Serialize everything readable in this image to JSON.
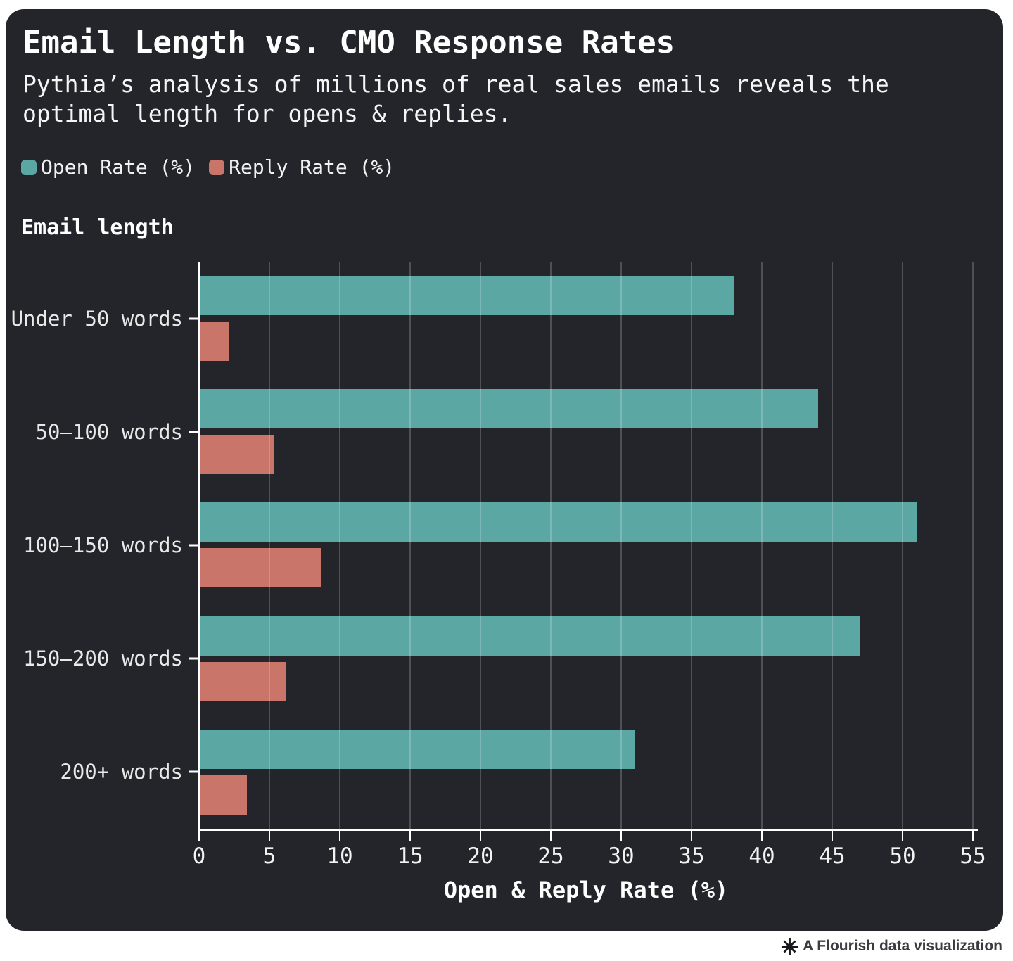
{
  "header": {
    "title": "Email Length vs. CMO Response Rates",
    "subtitle": "Pythia’s analysis of millions of real sales emails reveals the optimal length for opens & replies."
  },
  "legend": {
    "items": [
      {
        "label": "Open Rate (%)",
        "color": "#5AA7A4"
      },
      {
        "label": "Reply Rate (%)",
        "color": "#C97569"
      }
    ]
  },
  "chart_data": {
    "type": "bar",
    "orientation": "horizontal",
    "title": "Email Length vs. CMO Response Rates",
    "subtitle": "Pythia’s analysis of millions of real sales emails reveals the optimal length for opens & replies.",
    "y_axis_title": "Email length",
    "xlabel": "Open & Reply Rate (%)",
    "categories": [
      "Under 50 words",
      "50–100 words",
      "100–150 words",
      "150–200 words",
      "200+ words"
    ],
    "series": [
      {
        "name": "Open Rate (%)",
        "color": "#5AA7A4",
        "values": [
          38,
          44,
          51,
          47,
          31
        ]
      },
      {
        "name": "Reply Rate (%)",
        "color": "#C97569",
        "values": [
          2.1,
          5.3,
          8.7,
          6.2,
          3.4
        ]
      }
    ],
    "xlim": [
      0,
      55
    ],
    "x_ticks": [
      0,
      5,
      10,
      15,
      20,
      25,
      30,
      35,
      40,
      45,
      50,
      55
    ],
    "grid": true,
    "legend_position": "top"
  },
  "footer": {
    "attribution": "A Flourish data visualization"
  },
  "colors": {
    "card_bg": "#23252b",
    "page_bg": "#ffffff",
    "open_rate": "#5AA7A4",
    "reply_rate": "#C97569",
    "grid": "rgba(255,255,255,0.2)",
    "axis": "#ffffff",
    "text": "#ffffff",
    "muted_text": "#e9e9e9",
    "footer_text": "#3c3c40"
  }
}
